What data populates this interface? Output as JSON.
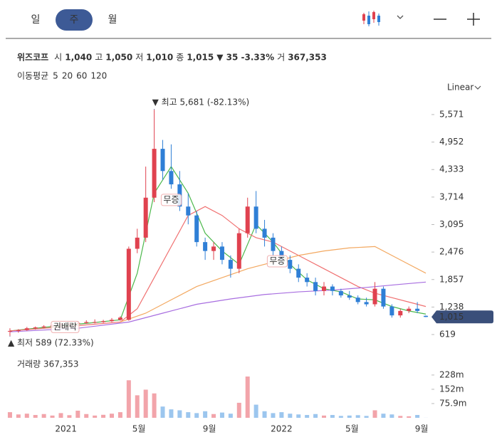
{
  "tabs": [
    "일",
    "주",
    "월"
  ],
  "active_tab": 1,
  "quote": {
    "name": "위즈코프",
    "fields": [
      {
        "label": "시",
        "value": "1,040"
      },
      {
        "label": "고",
        "value": "1,050"
      },
      {
        "label": "저",
        "value": "1,010"
      },
      {
        "label": "종",
        "value": "1,015"
      }
    ],
    "change": "▼ 35 -3.33%",
    "volume_label": "거",
    "volume": "367,353"
  },
  "ma_title": "이동평균",
  "scale_mode": "Linear",
  "chart_data": {
    "type": "candlestick",
    "up_color": "#e0424f",
    "down_color": "#2f7fd6",
    "xlim": [
      -0.5,
      49.5
    ],
    "xticks": [
      {
        "value": 6.6,
        "label": "2021"
      },
      {
        "value": 15.2,
        "label": "5월"
      },
      {
        "value": 23.5,
        "label": "9월"
      },
      {
        "value": 32,
        "label": "2022"
      },
      {
        "value": 40.3,
        "label": "5월"
      },
      {
        "value": 48.5,
        "label": "9월"
      }
    ],
    "ylim": [
      491,
      5907
    ],
    "yticks": [
      619,
      {
        "value": 1238,
        "label": "1,238"
      },
      {
        "value": 1857,
        "label": "1,857"
      },
      {
        "value": 2476,
        "label": "2,476"
      },
      {
        "value": 3095,
        "label": "3,095"
      },
      {
        "value": 3714,
        "label": "3,714"
      },
      {
        "value": 4333,
        "label": "4,333"
      },
      {
        "value": 4952,
        "label": "4,952"
      },
      {
        "value": 5571,
        "label": "5,571"
      }
    ],
    "ohlc": [
      [
        690,
        760,
        589,
        700
      ],
      [
        700,
        740,
        660,
        720
      ],
      [
        720,
        790,
        700,
        760
      ],
      [
        760,
        800,
        730,
        780
      ],
      [
        780,
        830,
        760,
        800
      ],
      [
        800,
        850,
        780,
        820
      ],
      [
        820,
        880,
        800,
        850
      ],
      [
        850,
        900,
        820,
        860
      ],
      [
        860,
        920,
        840,
        880
      ],
      [
        880,
        940,
        860,
        900
      ],
      [
        900,
        960,
        870,
        900
      ],
      [
        900,
        950,
        880,
        920
      ],
      [
        920,
        990,
        900,
        950
      ],
      [
        950,
        1030,
        930,
        1000
      ],
      [
        950,
        2600,
        930,
        2550
      ],
      [
        2550,
        3000,
        2450,
        2800
      ],
      [
        2800,
        4400,
        2700,
        3700
      ],
      [
        3700,
        5681,
        3600,
        4800
      ],
      [
        4800,
        5000,
        4100,
        4300
      ],
      [
        4300,
        4900,
        3900,
        4000
      ],
      [
        4000,
        4300,
        3400,
        3500
      ],
      [
        3500,
        3800,
        3100,
        3300
      ],
      [
        3300,
        3400,
        2600,
        2700
      ],
      [
        2700,
        2800,
        2300,
        2500
      ],
      [
        2500,
        2700,
        2300,
        2600
      ],
      [
        2600,
        2700,
        2200,
        2300
      ],
      [
        2300,
        2400,
        1900,
        2100
      ],
      [
        2100,
        3000,
        2000,
        2900
      ],
      [
        2900,
        3700,
        2800,
        3500
      ],
      [
        3500,
        3850,
        2900,
        3000
      ],
      [
        3000,
        3200,
        2600,
        2800
      ],
      [
        2800,
        2900,
        2400,
        2500
      ],
      [
        2500,
        2600,
        2200,
        2300
      ],
      [
        2300,
        2400,
        2000,
        2100
      ],
      [
        2100,
        2200,
        1800,
        1900
      ],
      [
        1900,
        2000,
        1700,
        1800
      ],
      [
        1800,
        1900,
        1500,
        1600
      ],
      [
        1600,
        1800,
        1500,
        1700
      ],
      [
        1700,
        1750,
        1500,
        1600
      ],
      [
        1600,
        1650,
        1450,
        1500
      ],
      [
        1500,
        1600,
        1400,
        1450
      ],
      [
        1450,
        1500,
        1300,
        1350
      ],
      [
        1350,
        1450,
        1250,
        1300
      ],
      [
        1300,
        1800,
        1250,
        1650
      ],
      [
        1650,
        1700,
        1200,
        1250
      ],
      [
        1250,
        1300,
        1000,
        1050
      ],
      [
        1050,
        1200,
        1000,
        1150
      ],
      [
        1150,
        1250,
        1100,
        1200
      ],
      [
        1200,
        1350,
        1100,
        1150
      ],
      [
        1040,
        1050,
        1010,
        1015
      ]
    ],
    "volume": [
      30000000,
      18000000,
      22000000,
      15000000,
      20000000,
      12000000,
      25000000,
      14000000,
      38000000,
      20000000,
      12000000,
      16000000,
      22000000,
      30000000,
      200000000,
      120000000,
      150000000,
      130000000,
      60000000,
      45000000,
      40000000,
      30000000,
      25000000,
      35000000,
      20000000,
      28000000,
      22000000,
      80000000,
      220000000,
      70000000,
      35000000,
      25000000,
      30000000,
      22000000,
      18000000,
      15000000,
      20000000,
      12000000,
      15000000,
      10000000,
      12000000,
      14000000,
      10000000,
      40000000,
      22000000,
      18000000,
      10000000,
      8000000,
      15000000,
      367353
    ],
    "volume_title": "거래량 367,353",
    "volume_ylim": [
      0,
      330000000
    ],
    "volume_yticks": [
      {
        "value": 75900000,
        "label": "75.9m"
      },
      {
        "value": 152000000,
        "label": "152m"
      },
      {
        "value": 228000000,
        "label": "228m"
      }
    ],
    "ma": [
      {
        "name": "5",
        "color": "#4cb84c",
        "x": [
          0,
          5,
          10,
          13,
          15,
          17,
          19,
          21,
          23,
          25,
          27,
          29,
          31,
          33,
          35,
          37,
          39,
          41,
          43,
          45,
          47,
          49
        ],
        "values": [
          700,
          800,
          890,
          950,
          2000,
          3800,
          4400,
          3800,
          2900,
          2500,
          2200,
          3100,
          2700,
          2200,
          1850,
          1650,
          1580,
          1420,
          1400,
          1250,
          1150,
          1080
        ]
      },
      {
        "name": "20",
        "color": "#f07070",
        "x": [
          0,
          8,
          13,
          15,
          17,
          19,
          21,
          23,
          25,
          27,
          29,
          31,
          33,
          35,
          37,
          39,
          41,
          43,
          45,
          47,
          49
        ],
        "values": [
          700,
          820,
          900,
          1200,
          1900,
          2600,
          3300,
          3500,
          3300,
          3000,
          2800,
          2700,
          2500,
          2300,
          2100,
          1900,
          1700,
          1550,
          1450,
          1350,
          1250
        ]
      },
      {
        "name": "60",
        "color": "#f3a860",
        "x": [
          13,
          16,
          19,
          22,
          25,
          28,
          31,
          34,
          37,
          40,
          43,
          46,
          49
        ],
        "values": [
          900,
          1100,
          1400,
          1700,
          1900,
          2100,
          2250,
          2400,
          2500,
          2570,
          2600,
          2300,
          2000
        ]
      },
      {
        "name": "120",
        "color": "#a86ee0",
        "x": [
          0,
          8,
          14,
          18,
          22,
          26,
          30,
          34,
          38,
          42,
          46,
          49
        ],
        "values": [
          680,
          760,
          900,
          1100,
          1300,
          1420,
          1520,
          1580,
          1620,
          1680,
          1750,
          1800
        ]
      }
    ],
    "annotations": [
      {
        "label": "권배락",
        "x": 6.5,
        "y": 790
      },
      {
        "label": "무증",
        "x": 19,
        "y": 3650
      },
      {
        "label": "무증",
        "x": 31.5,
        "y": 2270
      }
    ],
    "high_marker": {
      "label": "▼ 최고 5,681 (-82.13%)",
      "x": 17,
      "value": 5681
    },
    "low_marker": {
      "label": "▲ 최저 589 (72.33%)",
      "x": 0,
      "value": 589
    },
    "last_price": {
      "value": 1015,
      "label": "1,015"
    }
  }
}
